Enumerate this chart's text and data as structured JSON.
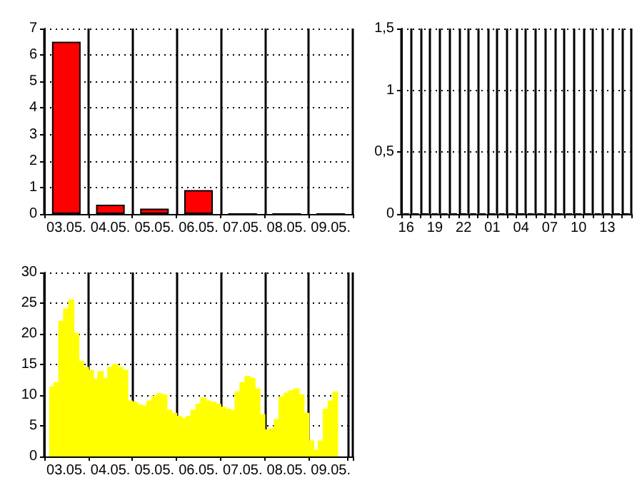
{
  "chart_data": [
    {
      "type": "bar",
      "categories": [
        "03.05.",
        "04.05.",
        "05.05.",
        "06.05.",
        "07.05.",
        "08.05.",
        "09.05."
      ],
      "values": [
        6.5,
        0.35,
        0.2,
        0.9,
        0,
        0,
        0
      ],
      "color": "#ff0000",
      "ylim": [
        0,
        7
      ],
      "yticks": [
        0,
        1,
        2,
        3,
        4,
        5,
        6,
        7
      ],
      "grid": true
    },
    {
      "type": "bar",
      "categories": [
        "16",
        null,
        null,
        "19",
        null,
        null,
        "22",
        null,
        null,
        "01",
        null,
        null,
        "04",
        null,
        null,
        "07",
        null,
        null,
        "10",
        null,
        null,
        "13",
        null,
        null
      ],
      "values": [
        0,
        0,
        0,
        0,
        0,
        0,
        0,
        0,
        0,
        0,
        0,
        0,
        0,
        0,
        0,
        0,
        0,
        0,
        0,
        0,
        0,
        0,
        0,
        0
      ],
      "color": "#ff0000",
      "ylim": [
        0,
        1.5
      ],
      "yticks": [
        0,
        {
          "value": 0.5,
          "label": "0,5"
        },
        1,
        {
          "value": 1.5,
          "label": "1,5"
        }
      ],
      "grid": true
    },
    {
      "type": "area",
      "color": "#ffff00",
      "ylim": [
        0,
        30
      ],
      "yticks": [
        0,
        5,
        10,
        15,
        20,
        25,
        30
      ],
      "categories": [
        null,
        null,
        null,
        null,
        "03.05.",
        null,
        null,
        null,
        null,
        null,
        null,
        null,
        null,
        "04.05.",
        null,
        null,
        null,
        null,
        null,
        null,
        null,
        null,
        "05.05.",
        null,
        null,
        null,
        null,
        null,
        null,
        null,
        null,
        "06.05.",
        null,
        null,
        null,
        null,
        null,
        null,
        null,
        null,
        "07.05.",
        null,
        null,
        null,
        null,
        null,
        null,
        null,
        null,
        "08.05.",
        null,
        null,
        null,
        null,
        null,
        null,
        null,
        null,
        "09.05.",
        null,
        null,
        null,
        null
      ],
      "values": [
        null,
        11.3,
        12,
        22,
        24,
        25.5,
        20,
        15.5,
        14.5,
        14,
        12.6,
        13.8,
        12.7,
        14.5,
        15,
        14.5,
        14,
        9,
        8.8,
        8.4,
        8.2,
        9,
        9.8,
        10.2,
        10,
        7.5,
        7,
        6.5,
        6.2,
        6.5,
        7.5,
        8.5,
        9.5,
        9,
        8.8,
        8.5,
        8,
        7.7,
        7.5,
        10.5,
        12,
        13,
        12.7,
        11,
        6.8,
        4.3,
        4.5,
        6,
        9.7,
        10.3,
        10.7,
        11,
        10,
        7,
        2.5,
        1,
        2.5,
        7.7,
        9,
        10.5,
        null,
        null,
        null
      ],
      "grid": true
    }
  ]
}
